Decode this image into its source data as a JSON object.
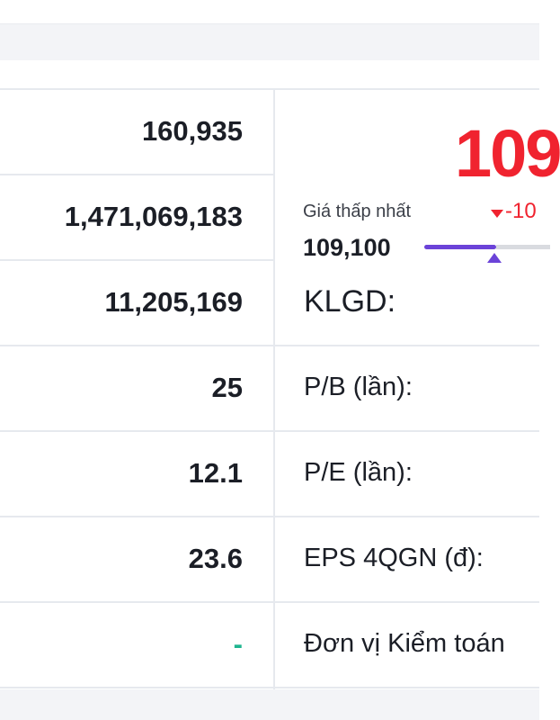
{
  "left_values": [
    "160,935",
    "1,471,069,183",
    "11,205,169",
    "25",
    "12.1",
    "23.6",
    "-"
  ],
  "price": {
    "current": "109",
    "low_label": "Giá thấp nhất",
    "change": "-10",
    "low_value": "109,100"
  },
  "right_labels": [
    "KLGD:",
    "P/B (lần):",
    "P/E (lần):",
    "EPS 4QGN (đ):",
    "Đơn vị Kiểm toán"
  ]
}
